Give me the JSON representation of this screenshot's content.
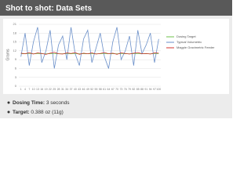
{
  "chart_data": {
    "type": "line",
    "title": "Shot to shot: Data Sets",
    "y_label": "Grams",
    "categories": [
      "1",
      "4",
      "7",
      "10",
      "13",
      "16",
      "19",
      "22",
      "25",
      "28",
      "31",
      "34",
      "37",
      "40",
      "43",
      "46",
      "49",
      "52",
      "55",
      "58",
      "61",
      "64",
      "67",
      "70",
      "73",
      "76",
      "79",
      "82",
      "85",
      "88",
      "91",
      "94",
      "97",
      "100"
    ],
    "ylim": [
      0,
      21
    ],
    "yticks": [
      0,
      3,
      6,
      9,
      12,
      15,
      18,
      21
    ],
    "grid": true,
    "series": [
      {
        "name": "Dosing Target",
        "color": "#6cc04a",
        "values": [
          11,
          11,
          11,
          11,
          11,
          11,
          11,
          11,
          11,
          11,
          11,
          11,
          11,
          11,
          11,
          11,
          11,
          11,
          11,
          11,
          11,
          11,
          11,
          11,
          11,
          11,
          11,
          11,
          11,
          11,
          11,
          11,
          11,
          11
        ]
      },
      {
        "name": "Typical Volumetric",
        "color": "#6a8fc9",
        "values": [
          10,
          18,
          7,
          15,
          20,
          8,
          12,
          19,
          6,
          14,
          17,
          9,
          20,
          11,
          7,
          16,
          19,
          8,
          13,
          18,
          10,
          6,
          15,
          20,
          9,
          12,
          17,
          7,
          19,
          11,
          14,
          18,
          8,
          16
        ]
      },
      {
        "name": "Magpie Gravimetric Feeder",
        "color": "#d0312d",
        "values": [
          11.2,
          11,
          11.4,
          10.9,
          11.3,
          11.1,
          10.8,
          11.2,
          11.5,
          11,
          10.9,
          11.3,
          11.1,
          11.4,
          10.8,
          11.2,
          11,
          11.3,
          10.9,
          11.1,
          11.4,
          11,
          11.2,
          10.8,
          11.3,
          11.1,
          10.9,
          11.2,
          11.4,
          11,
          11.1,
          10.9,
          11.3,
          11.2
        ]
      }
    ]
  },
  "bullets": [
    {
      "label": "Dosing Time:",
      "text": "3 seconds"
    },
    {
      "label": "Target:",
      "text": "0.388 oz (11g)"
    }
  ]
}
